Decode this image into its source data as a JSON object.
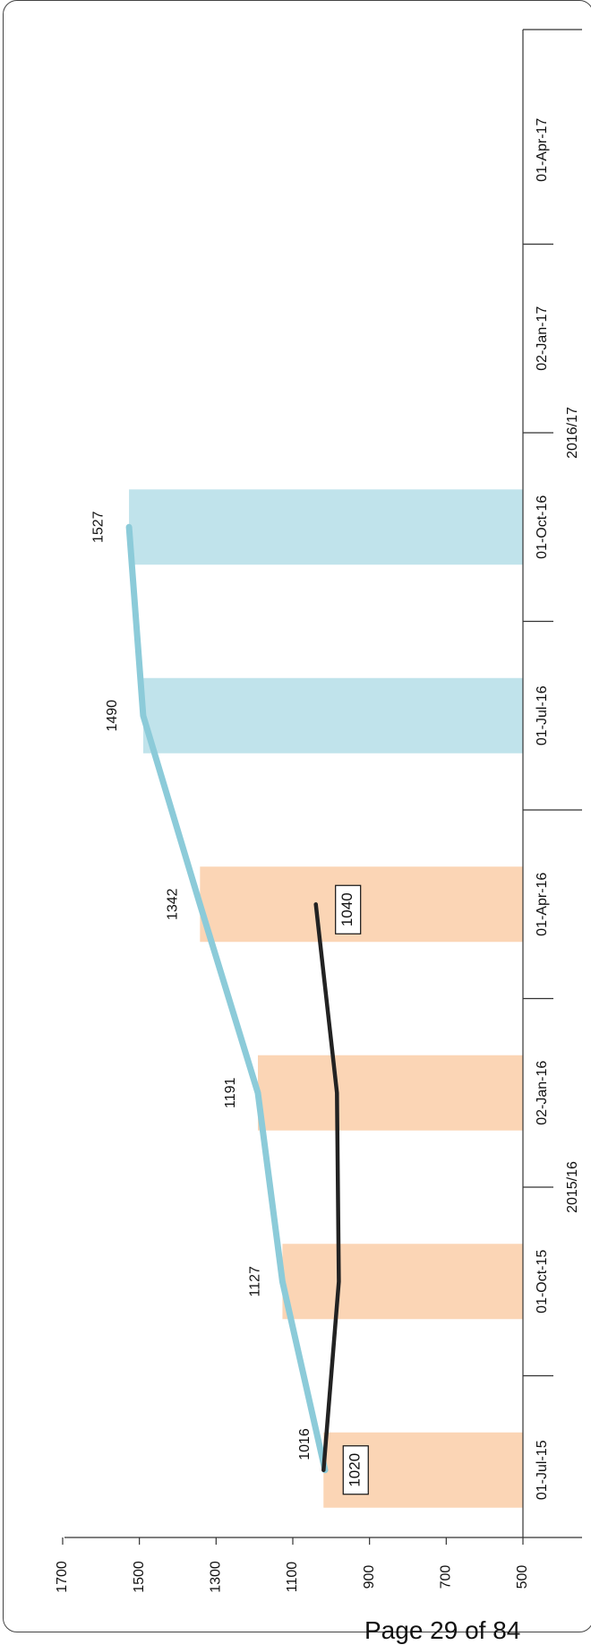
{
  "footer": {
    "page": "Page 29 of 84"
  },
  "chart_data": {
    "type": "bar",
    "orientation": "rotated-90-clockwise",
    "categories": [
      "01-Jul-15",
      "01-Oct-15",
      "02-Jan-16",
      "01-Apr-16",
      "01-Jul-16",
      "01-Oct-16",
      "02-Jan-17",
      "01-Apr-17"
    ],
    "groups": [
      {
        "label": "2015/16",
        "categories": [
          "01-Jul-15",
          "01-Oct-15",
          "02-Jan-16",
          "01-Apr-16"
        ]
      },
      {
        "label": "2016/17",
        "categories": [
          "01-Jul-16",
          "01-Oct-16",
          "02-Jan-17",
          "01-Apr-17"
        ]
      }
    ],
    "bars": [
      {
        "category": "01-Jul-15",
        "value": 1020,
        "color": "#fbd5b5"
      },
      {
        "category": "01-Oct-15",
        "value": 1127,
        "color": "#fbd5b5"
      },
      {
        "category": "02-Jan-16",
        "value": 1191,
        "color": "#fbd5b5"
      },
      {
        "category": "01-Apr-16",
        "value": 1342,
        "color": "#fbd5b5"
      },
      {
        "category": "01-Jul-16",
        "value": 1490,
        "color": "#c0e3eb"
      },
      {
        "category": "01-Oct-16",
        "value": 1527,
        "color": "#c0e3eb"
      }
    ],
    "series": [
      {
        "color": "#8ccbd9",
        "points": [
          {
            "category": "01-Jul-15",
            "value": 1016,
            "label": "1016"
          },
          {
            "category": "01-Oct-15",
            "value": 1127,
            "label": "1127"
          },
          {
            "category": "02-Jan-16",
            "value": 1191,
            "label": "1191"
          },
          {
            "category": "01-Apr-16",
            "value": 1342,
            "label": "1342"
          },
          {
            "category": "01-Jul-16",
            "value": 1490,
            "label": "1490"
          },
          {
            "category": "01-Oct-16",
            "value": 1527,
            "label": "1527"
          }
        ]
      },
      {
        "color": "#222222",
        "points": [
          {
            "category": "01-Jul-15",
            "value": 1020,
            "label": "1020"
          },
          {
            "category": "01-Oct-15",
            "value": 980,
            "label": ""
          },
          {
            "category": "02-Jan-16",
            "value": 985,
            "label": ""
          },
          {
            "category": "01-Apr-16",
            "value": 1040,
            "label": "1040"
          }
        ]
      }
    ],
    "value_axis": {
      "min": 500,
      "max": 1700,
      "ticks": [
        "500",
        "700",
        "900",
        "1100",
        "1300",
        "1500",
        "1700"
      ]
    },
    "grid": false,
    "legend": "none"
  }
}
